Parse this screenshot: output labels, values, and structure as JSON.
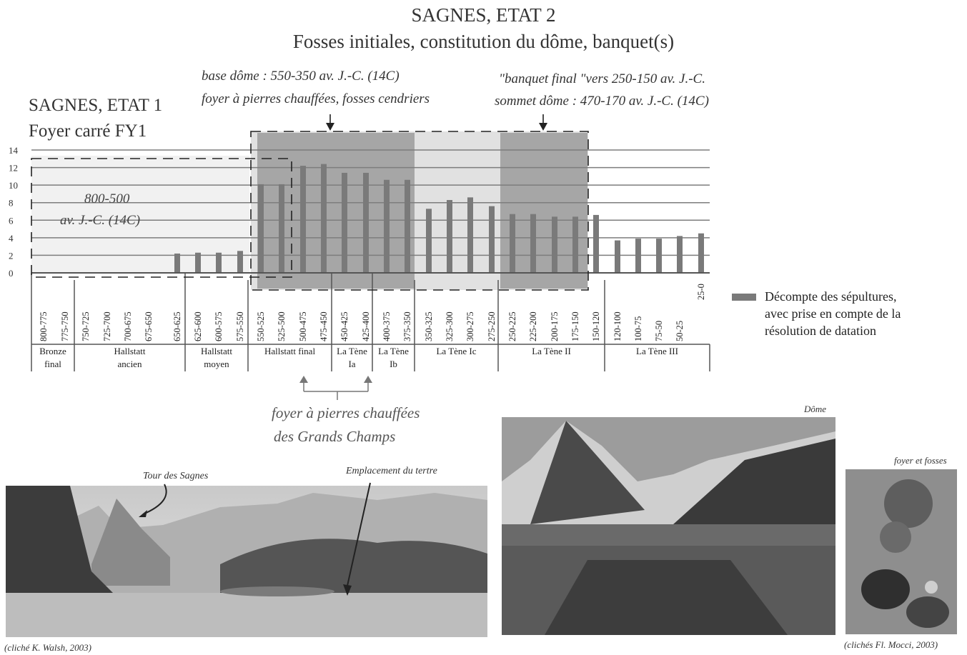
{
  "header": {
    "title": "SAGNES, ETAT 2",
    "subtitle": "Fosses initiales, constitution du dôme, banquet(s)"
  },
  "etat1": {
    "title": "SAGNES, ETAT 1",
    "subtitle": "Foyer carré FY1",
    "date_line1": "800-500",
    "date_line2": "av. J.-C. (14C)"
  },
  "annotations": {
    "base_line1": "base dôme : 550-350 av. J.-C. (14C)",
    "base_line2": "foyer à pierres chauffées, fosses cendriers",
    "banquet_line1": "\"banquet final \"vers 250-150 av. J.-C.",
    "banquet_line2": "sommet dôme : 470-170 av. J.-C. (14C)",
    "grands_line1": "foyer à pierres chauffées",
    "grands_line2": "des Grands Champs"
  },
  "legend": {
    "line1": "Décompte des sépultures,",
    "line2": "avec prise en compte de la",
    "line3": "résolution de datation",
    "color": "#7a7a7a"
  },
  "chart_data": {
    "type": "bar",
    "title": "SAGNES, ETAT 2",
    "ylim": [
      0,
      14
    ],
    "y_ticks": [
      "0",
      "2",
      "4",
      "6",
      "8",
      "10",
      "12",
      "14"
    ],
    "grid": true,
    "legend_position": "right",
    "categories": [
      "800-775",
      "775-750",
      "750-725",
      "725-700",
      "700-675",
      "675-650",
      "650-625",
      "625-600",
      "600-575",
      "575-550",
      "550-525",
      "525-500",
      "500-475",
      "475-450",
      "450-425",
      "425-400",
      "400-375",
      "375-350",
      "350-325",
      "325-300",
      "300-275",
      "275-250",
      "250-225",
      "225-200",
      "200-175",
      "175-150",
      "150-120",
      "120-100",
      "100-75",
      "75-50",
      "50-25",
      "25-0"
    ],
    "series": [
      {
        "name": "Décompte des sépultures, avec prise en compte de la résolution de datation",
        "values": [
          0,
          0,
          0,
          0,
          0,
          0,
          2.2,
          2.3,
          2.3,
          2.5,
          10.1,
          10.1,
          12.2,
          12.4,
          11.4,
          11.4,
          10.6,
          10.6,
          7.3,
          8.3,
          8.6,
          7.6,
          6.7,
          6.7,
          6.4,
          6.4,
          6.6,
          3.7,
          3.9,
          3.9,
          4.2,
          4.5
        ]
      }
    ],
    "periods": [
      {
        "label1": "Bronze",
        "label2": "final",
        "start": 0,
        "end": 2
      },
      {
        "label1": "Hallstatt",
        "label2": "ancien",
        "start": 2,
        "end": 7
      },
      {
        "label1": "Hallstatt",
        "label2": "moyen",
        "start": 7,
        "end": 10
      },
      {
        "label1": "Hallstatt final",
        "label2": "",
        "start": 10,
        "end": 14
      },
      {
        "label1": "La Tène",
        "label2": "Ia",
        "start": 14,
        "end": 16
      },
      {
        "label1": "La Tène",
        "label2": "Ib",
        "start": 16,
        "end": 18
      },
      {
        "label1": "La Tène Ic",
        "label2": "",
        "start": 18,
        "end": 22
      },
      {
        "label1": "La Tène II",
        "label2": "",
        "start": 22,
        "end": 27
      },
      {
        "label1": "La Tène III",
        "label2": "",
        "start": 27,
        "end": 32
      }
    ]
  },
  "photos": {
    "left_label_tour": "Tour des Sagnes",
    "left_label_tertre": "Emplacement du tertre",
    "left_credit": "(cliché K. Walsh, 2003)",
    "middle_label": "Dôme",
    "right_label": "foyer et fosses",
    "right_credit": "(clichés Fl. Mocci, 2003)"
  }
}
